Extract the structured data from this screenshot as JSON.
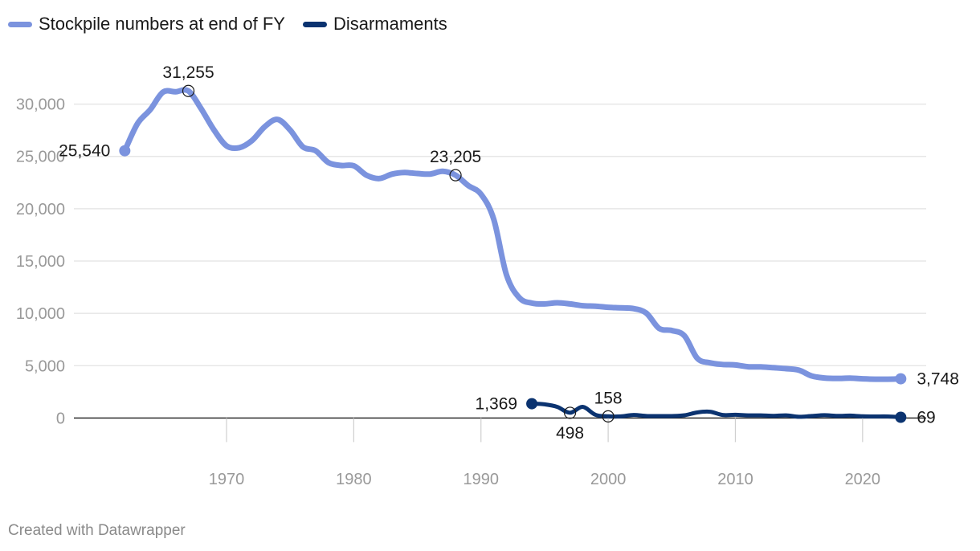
{
  "legend": {
    "items": [
      {
        "label": "Stockpile numbers at end of FY",
        "color": "#7b93de"
      },
      {
        "label": "Disarmaments",
        "color": "#0b3370"
      }
    ]
  },
  "footer": {
    "text": "Created with Datawrapper"
  },
  "chart_data": {
    "type": "line",
    "title": "",
    "xlabel": "",
    "ylabel": "",
    "xlim": [
      1958,
      2025
    ],
    "ylim": [
      -3500,
      33500
    ],
    "x_ticks": [
      1970,
      1980,
      1990,
      2000,
      2010,
      2020
    ],
    "y_ticks": [
      0,
      5000,
      10000,
      15000,
      20000,
      25000,
      30000
    ],
    "y_tick_labels": [
      "0",
      "5,000",
      "10,000",
      "15,000",
      "20,000",
      "25,000",
      "30,000"
    ],
    "grid": true,
    "legend_position": "top-left",
    "series": [
      {
        "name": "Stockpile numbers at end of FY",
        "color": "#7b93de",
        "x": [
          1962,
          1963,
          1964,
          1965,
          1966,
          1967,
          1968,
          1969,
          1970,
          1971,
          1972,
          1973,
          1974,
          1975,
          1976,
          1977,
          1978,
          1979,
          1980,
          1981,
          1982,
          1983,
          1984,
          1985,
          1986,
          1987,
          1988,
          1989,
          1990,
          1991,
          1992,
          1993,
          1994,
          1995,
          1996,
          1997,
          1998,
          1999,
          2000,
          2001,
          2002,
          2003,
          2004,
          2005,
          2006,
          2007,
          2008,
          2009,
          2010,
          2011,
          2012,
          2013,
          2014,
          2015,
          2016,
          2017,
          2018,
          2019,
          2020,
          2021,
          2022,
          2023
        ],
        "values": [
          25540,
          28133,
          29463,
          31139,
          31175,
          31255,
          29561,
          27552,
          26008,
          25830,
          26516,
          27835,
          28537,
          27519,
          25914,
          25542,
          24418,
          24138,
          24104,
          23208,
          22886,
          23305,
          23459,
          23368,
          23317,
          23575,
          23205,
          22217,
          21392,
          19008,
          13708,
          11511,
          10979,
          10904,
          11011,
          10903,
          10732,
          10685,
          10577,
          10526,
          10457,
          10027,
          8570,
          8360,
          7853,
          5709,
          5273,
          5113,
          5066,
          4897,
          4881,
          4804,
          4717,
          4571,
          4018,
          3822,
          3785,
          3805,
          3750,
          3708,
          3708,
          3748
        ],
        "annotations": [
          {
            "x": 1962,
            "value": 25540,
            "label": "25,540",
            "marker": "dot"
          },
          {
            "x": 1967,
            "value": 31255,
            "label": "31,255",
            "marker": "circle"
          },
          {
            "x": 1988,
            "value": 23205,
            "label": "23,205",
            "marker": "circle"
          },
          {
            "x": 2023,
            "value": 3748,
            "label": "3,748",
            "marker": "dot"
          }
        ]
      },
      {
        "name": "Disarmaments",
        "color": "#0b3370",
        "x": [
          1994,
          1995,
          1996,
          1997,
          1998,
          1999,
          2000,
          2001,
          2002,
          2003,
          2004,
          2005,
          2006,
          2007,
          2008,
          2009,
          2010,
          2011,
          2012,
          2013,
          2014,
          2015,
          2016,
          2017,
          2018,
          2019,
          2020,
          2021,
          2022,
          2023
        ],
        "values": [
          1369,
          1305,
          1062,
          498,
          1064,
          305,
          158,
          152,
          290,
          189,
          183,
          186,
          258,
          533,
          601,
          290,
          309,
          250,
          250,
          205,
          253,
          113,
          192,
          272,
          197,
          227,
          160,
          150,
          150,
          69
        ],
        "annotations": [
          {
            "x": 1994,
            "value": 1369,
            "label": "1,369",
            "marker": "dot"
          },
          {
            "x": 1997,
            "value": 498,
            "label": "498",
            "marker": "circle"
          },
          {
            "x": 2000,
            "value": 158,
            "label": "158",
            "marker": "circle"
          },
          {
            "x": 2023,
            "value": 69,
            "label": "69",
            "marker": "dot"
          }
        ]
      }
    ]
  }
}
